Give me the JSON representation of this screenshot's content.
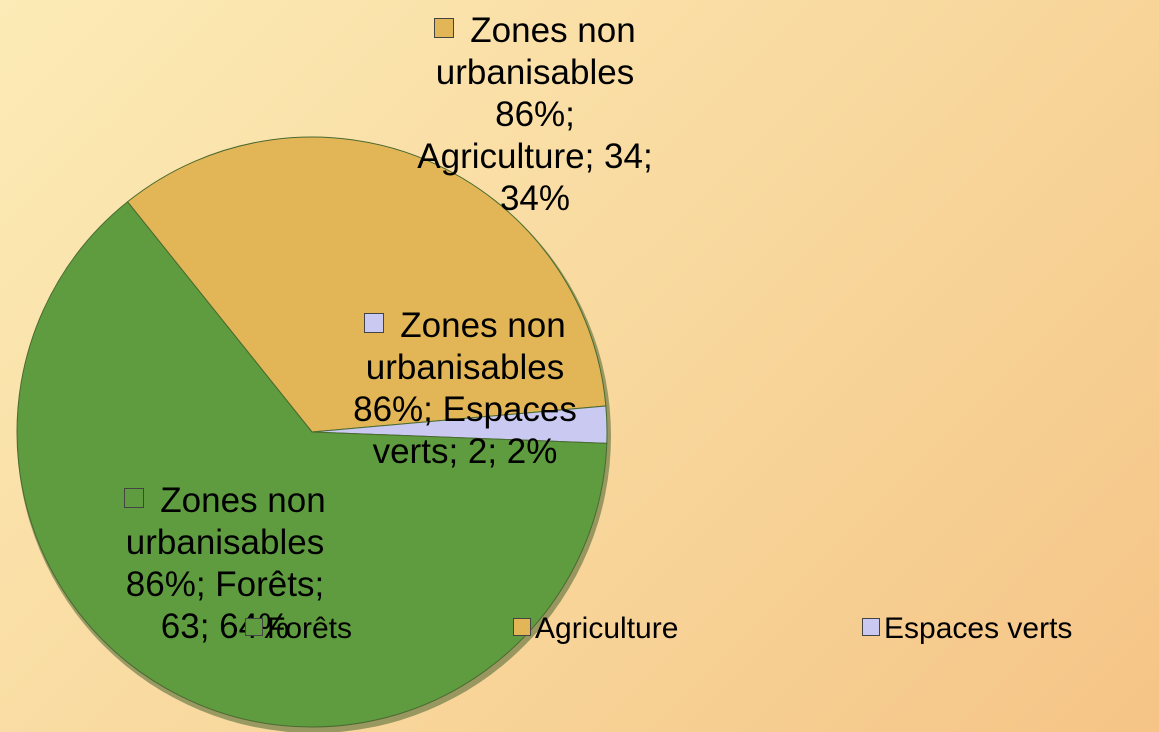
{
  "chart_data": {
    "type": "pie",
    "series_name": "Zones non urbanisables 86%",
    "categories": [
      "Forêts",
      "Agriculture",
      "Espaces verts"
    ],
    "values": [
      63,
      34,
      2
    ],
    "colors": [
      "#5e9c3f",
      "#e2b657",
      "#c9c9f2"
    ],
    "value_labels": [
      "Zones non urbanisables 86%; Forêts; 63; 64%",
      "Zones non urbanisables 86%; Agriculture; 34; 34%",
      "Zones non urbanisables 86%; Espaces verts; 2; 2%"
    ],
    "legend": "bottom"
  }
}
